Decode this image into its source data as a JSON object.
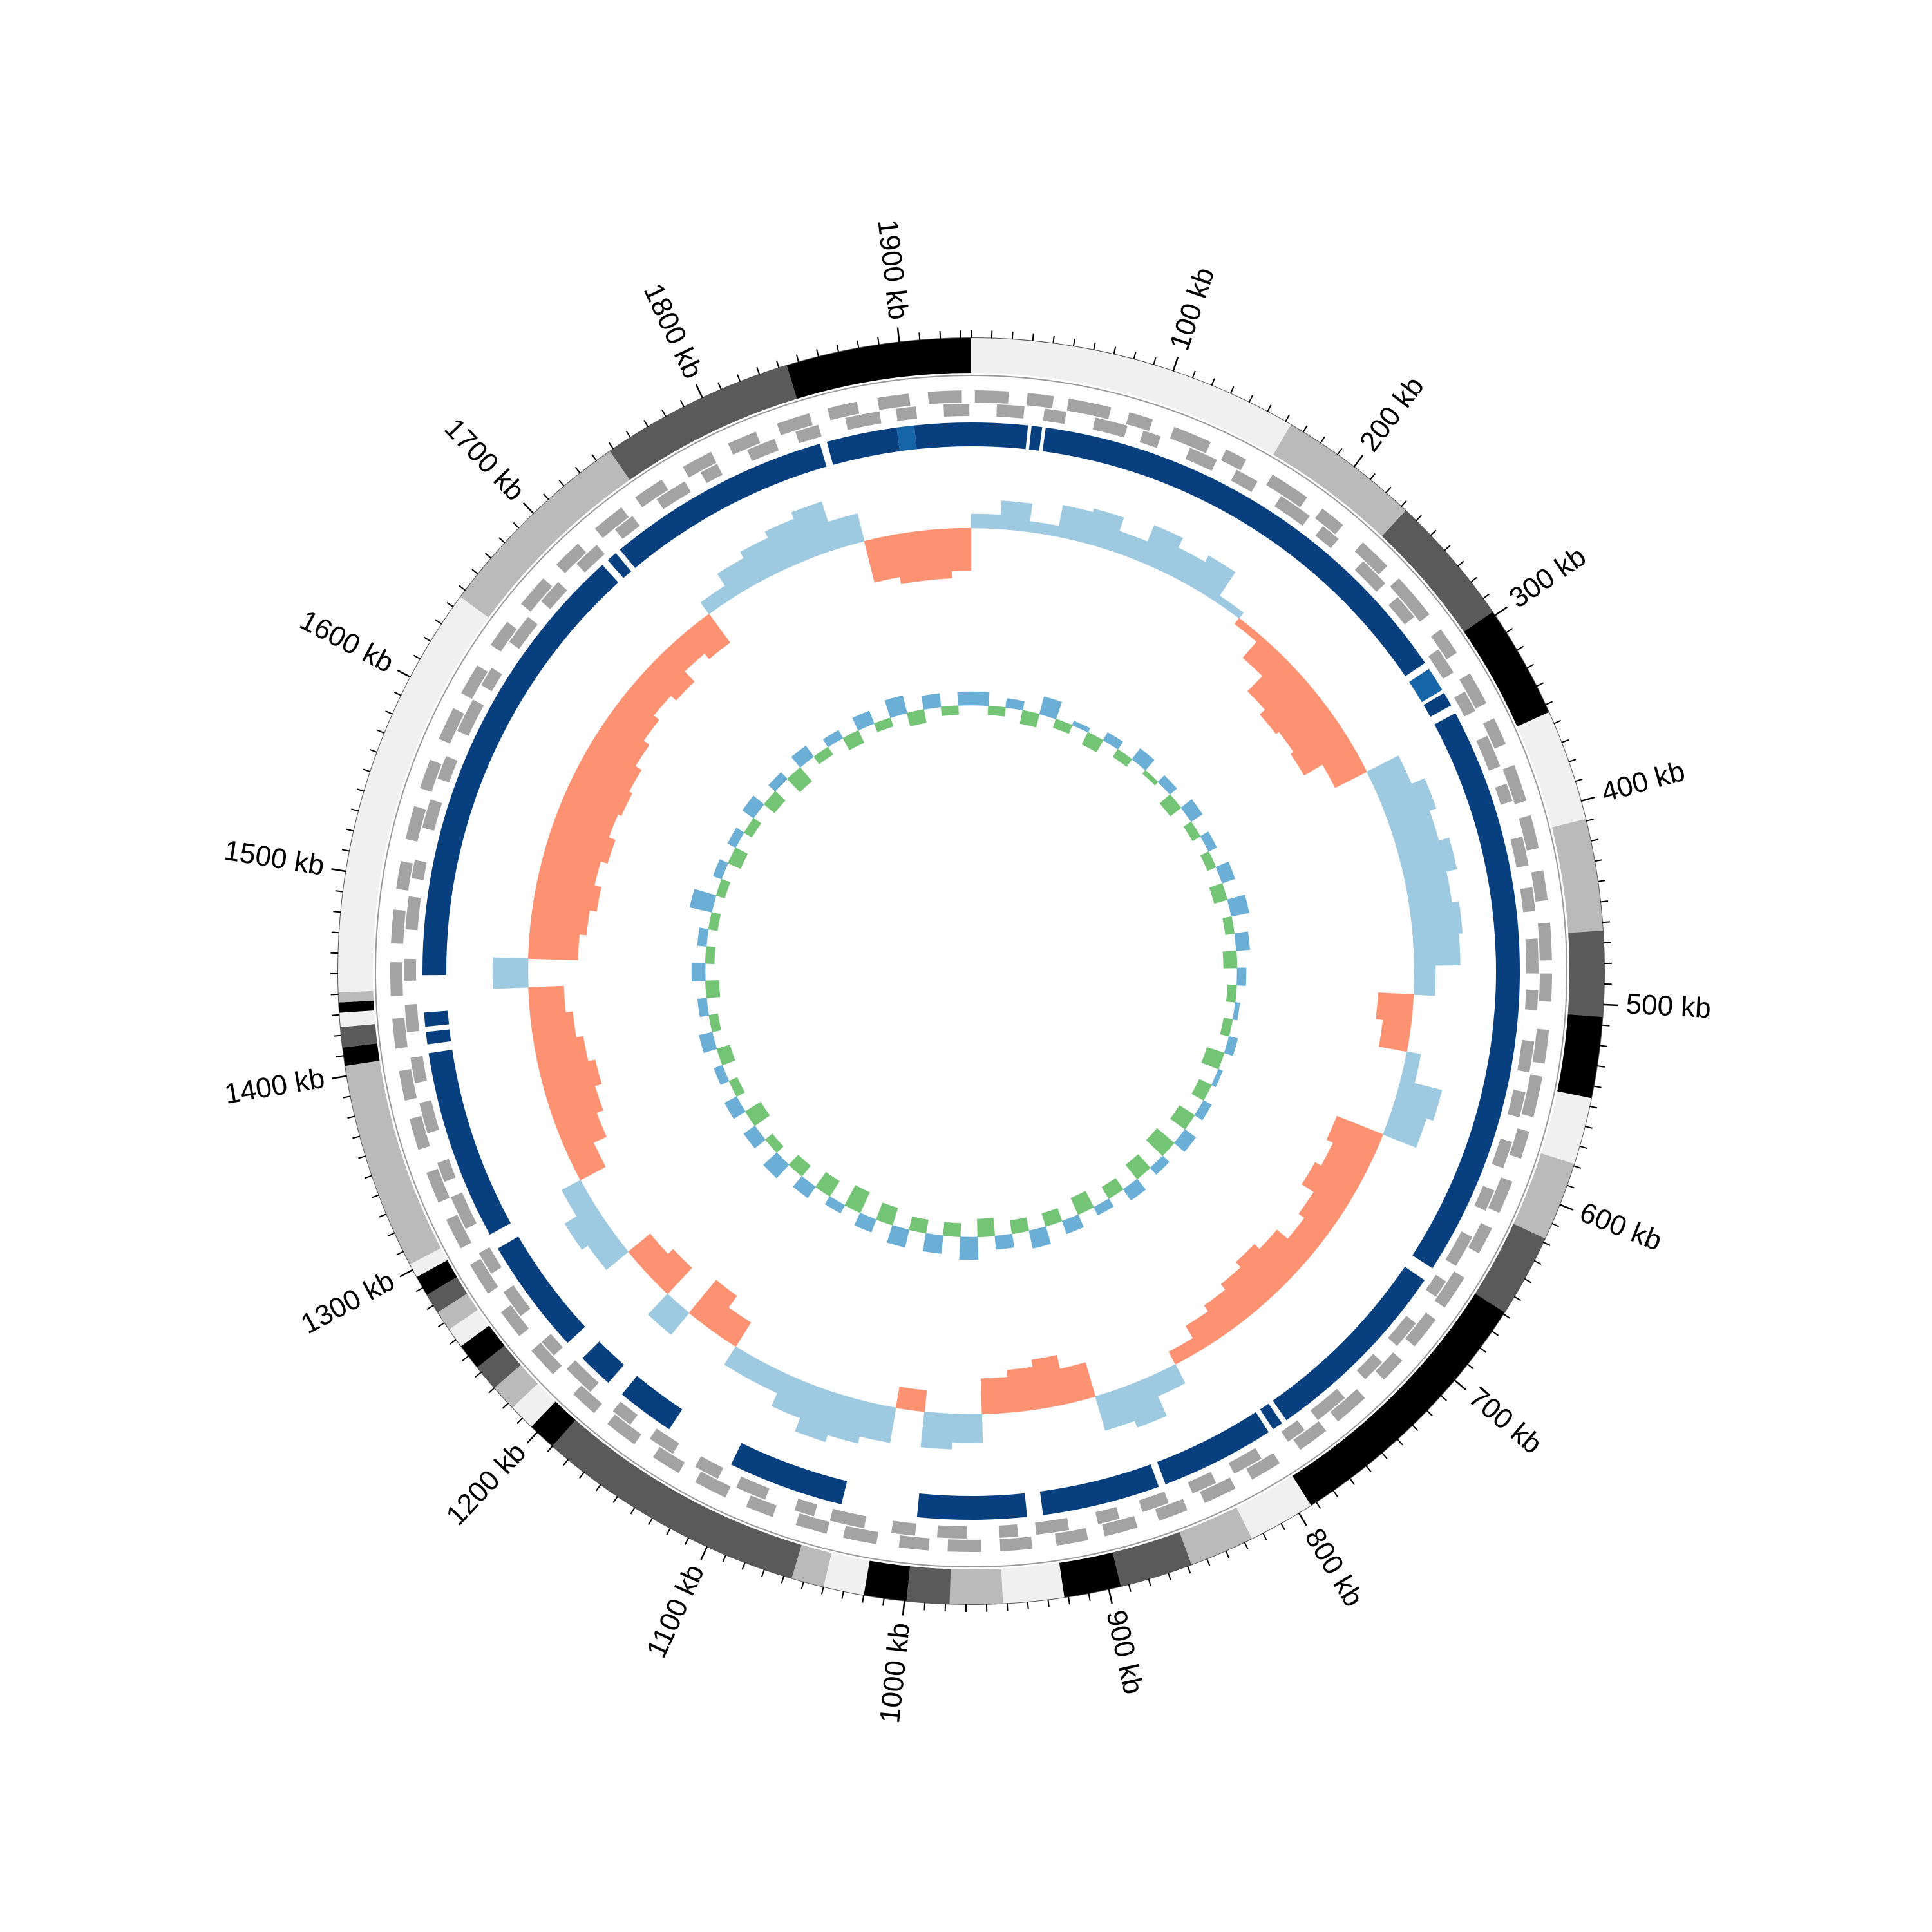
{
  "chart_data": {
    "type": "circular",
    "xlim": [
      0,
      1935
    ],
    "xticks": [
      {
        "value": 100,
        "label": "100 kb"
      },
      {
        "value": 200,
        "label": "200 kb"
      },
      {
        "value": 300,
        "label": "300 kb"
      },
      {
        "value": 400,
        "label": "400 kb"
      },
      {
        "value": 500,
        "label": "500 kb"
      },
      {
        "value": 600,
        "label": "600 kb"
      },
      {
        "value": 700,
        "label": "700 kb"
      },
      {
        "value": 800,
        "label": "800 kb"
      },
      {
        "value": 900,
        "label": "900 kb"
      },
      {
        "value": 1000,
        "label": "1000 kb"
      },
      {
        "value": 1100,
        "label": "1100 kb"
      },
      {
        "value": 1200,
        "label": "1200 kb"
      },
      {
        "value": 1300,
        "label": "1300 kb"
      },
      {
        "value": 1400,
        "label": "1400 kb"
      },
      {
        "value": 1500,
        "label": "1500 kb"
      },
      {
        "value": 1600,
        "label": "1600 kb"
      },
      {
        "value": 1700,
        "label": "1700 kb"
      },
      {
        "value": 1800,
        "label": "1800 kb"
      },
      {
        "value": 1900,
        "label": "1900 kb"
      }
    ],
    "minor_ticks": [
      0,
      10,
      20,
      30,
      40,
      50,
      60,
      70,
      80,
      90,
      100,
      110,
      120,
      130,
      140,
      150,
      160,
      170,
      180,
      190,
      200,
      210,
      220,
      230,
      240,
      250,
      260,
      270,
      280,
      290,
      300,
      310,
      320,
      330,
      340,
      350,
      360,
      370,
      380,
      390,
      400,
      410,
      420,
      430,
      440,
      450,
      460,
      470,
      480,
      490,
      500,
      510,
      520,
      530,
      540,
      550,
      560,
      570,
      580,
      590,
      600,
      610,
      620,
      630,
      640,
      650,
      660,
      670,
      680,
      690,
      700,
      710,
      720,
      730,
      740,
      750,
      760,
      770,
      780,
      790,
      800,
      810,
      820,
      830,
      840,
      850,
      860,
      870,
      880,
      890,
      900,
      910,
      920,
      930,
      940,
      950,
      960,
      970,
      980,
      990,
      1000,
      1010,
      1020,
      1030,
      1040,
      1050,
      1060,
      1070,
      1080,
      1090,
      1100,
      1110,
      1120,
      1130,
      1140,
      1150,
      1160,
      1170,
      1180,
      1190,
      1200,
      1210,
      1220,
      1230,
      1240,
      1250,
      1260,
      1270,
      1280,
      1290,
      1300,
      1310,
      1320,
      1330,
      1340,
      1350,
      1360,
      1370,
      1380,
      1390,
      1400,
      1410,
      1420,
      1430,
      1440,
      1450,
      1460,
      1470,
      1480,
      1490,
      1500,
      1510,
      1520,
      1530,
      1540,
      1550,
      1560,
      1570,
      1580,
      1590,
      1600,
      1610,
      1620,
      1630,
      1640,
      1650,
      1660,
      1670,
      1680,
      1690,
      1700,
      1710,
      1720,
      1730,
      1740,
      1750,
      1760,
      1770,
      1780,
      1790,
      1800,
      1810,
      1820,
      1830,
      1840,
      1850,
      1860,
      1870,
      1880,
      1890,
      1900,
      1910,
      1920,
      1930
    ],
    "bands": {
      "start": [
        0,
        163,
        233,
        298,
        354,
        409,
        464,
        506,
        546,
        579,
        618,
        659,
        793,
        826,
        858,
        894,
        922,
        952,
        978,
        999,
        1020,
        1040,
        1056,
        1190,
        1204,
        1217,
        1230,
        1243,
        1256,
        1266,
        1276,
        1286,
        1296,
        1303,
        1405,
        1414,
        1424,
        1431,
        1436,
        1441,
        1646,
        1748,
        1844
      ],
      "end": [
        163,
        233,
        298,
        354,
        409,
        464,
        506,
        546,
        579,
        618,
        659,
        793,
        826,
        858,
        894,
        922,
        952,
        978,
        999,
        1020,
        1040,
        1056,
        1190,
        1204,
        1217,
        1230,
        1243,
        1256,
        1266,
        1276,
        1286,
        1296,
        1303,
        1405,
        1414,
        1424,
        1431,
        1436,
        1441,
        1646,
        1748,
        1844,
        1935
      ],
      "colors": [
        "#f0f0f0",
        "#bababa",
        "#5a5a5a",
        "#000000",
        "#f0f0f0",
        "#bababa",
        "#5a5a5a",
        "#000000",
        "#f0f0f0",
        "#bababa",
        "#5a5a5a",
        "#000000",
        "#f0f0f0",
        "#bababa",
        "#5a5a5a",
        "#000000",
        "#f0f0f0",
        "#bababa",
        "#5a5a5a",
        "#000000",
        "#f0f0f0",
        "#bababa",
        "#5a5a5a",
        "#000000",
        "#f0f0f0",
        "#bababa",
        "#5a5a5a",
        "#000000",
        "#f0f0f0",
        "#bababa",
        "#5a5a5a",
        "#000000",
        "#f0f0f0",
        "#bababa",
        "#000000",
        "#5a5a5a",
        "#f0f0f0",
        "#000000",
        "#bababa",
        "#f0f0f0",
        "#bababa",
        "#5a5a5a",
        "#000000"
      ]
    },
    "genes": {
      "color": "#a3a3a3",
      "forward": {
        "start": [
          2,
          30,
          52,
          85,
          110,
          140,
          168,
          200,
          228,
          255,
          290,
          318,
          345,
          372,
          400,
          430,
          458,
          485,
          515,
          540,
          570,
          598,
          625,
          655,
          682,
          710,
          738,
          765,
          795,
          822,
          850,
          878,
          905,
          935,
          962,
          990,
          1018,
          1045,
          1075,
          1102,
          1130,
          1158,
          1185,
          1215,
          1242,
          1270,
          1298,
          1325,
          1355,
          1382,
          1410,
          1438,
          1466,
          1495,
          1522,
          1550,
          1578,
          1605,
          1635,
          1662,
          1690,
          1718,
          1745,
          1775,
          1802,
          1830,
          1858,
          1885,
          1912
        ],
        "end": [
          20,
          44,
          75,
          98,
          131,
          152,
          190,
          214,
          246,
          280,
          305,
          336,
          360,
          392,
          418,
          446,
          478,
          500,
          533,
          562,
          585,
          616,
          640,
          674,
          700,
          724,
          757,
          782,
          812,
          840,
          866,
          896,
          922,
          952,
          980,
          1006,
          1036,
          1062,
          1090,
          1120,
          1146,
          1176,
          1200,
          1232,
          1258,
          1288,
          1315,
          1342,
          1372,
          1398,
          1426,
          1456,
          1484,
          1510,
          1540,
          1566,
          1596,
          1622,
          1650,
          1680,
          1706,
          1736,
          1762,
          1792,
          1818,
          1848,
          1874,
          1902,
          1930
        ]
      },
      "reverse": {
        "start": [
          14,
          40,
          68,
          95,
          122,
          150,
          178,
          206,
          235,
          262,
          298,
          325,
          352,
          380,
          410,
          438,
          466,
          494,
          522,
          550,
          578,
          606,
          634,
          662,
          690,
          718,
          746,
          774,
          802,
          830,
          858,
          886,
          914,
          942,
          970,
          998,
          1026,
          1054,
          1082,
          1110,
          1138,
          1166,
          1194,
          1222,
          1250,
          1278,
          1306,
          1334,
          1362,
          1390,
          1418,
          1446,
          1474,
          1502,
          1530,
          1558,
          1586,
          1614,
          1642,
          1670,
          1698,
          1726,
          1754,
          1782,
          1810,
          1838,
          1866,
          1894,
          1920
        ],
        "end": [
          29,
          52,
          86,
          105,
          138,
          163,
          197,
          217,
          252,
          276,
          313,
          337,
          370,
          390,
          426,
          451,
          485,
          505,
          539,
          564,
          593,
          618,
          652,
          672,
          706,
          731,
          765,
          785,
          819,
          844,
          873,
          898,
          932,
          952,
          986,
          1011,
          1045,
          1065,
          1099,
          1124,
          1153,
          1178,
          1212,
          1232,
          1266,
          1291,
          1325,
          1345,
          1379,
          1404,
          1433,
          1458,
          1492,
          1512,
          1546,
          1571,
          1605,
          1625,
          1659,
          1684,
          1713,
          1738,
          1772,
          1792,
          1826,
          1851,
          1885,
          1905,
          1934
        ]
      }
    },
    "blocks": {
      "start": [
        0,
        34,
        42,
        304,
        320,
        333,
        668,
        782,
        791,
        860,
        936,
        1041,
        1147,
        1190,
        1222,
        1297,
        1410,
        1420,
        1449,
        1712,
        1721,
        1853,
        1893,
        1903
      ],
      "end": [
        32,
        40,
        300,
        318,
        328,
        660,
        779,
        788,
        856,
        927,
        998,
        1107,
        1180,
        1210,
        1288,
        1405,
        1417,
        1428,
        1708,
        1718,
        1849,
        1893,
        1903,
        1935
      ],
      "colors": [
        "#08407f",
        "#08407f",
        "#08407f",
        "#1565a8",
        "#08407f",
        "#08407f",
        "#08407f",
        "#08407f",
        "#08407f",
        "#08407f",
        "#08407f",
        "#08407f",
        "#08407f",
        "#08407f",
        "#08407f",
        "#08407f",
        "#08407f",
        "#08407f",
        "#08407f",
        "#08407f",
        "#08407f",
        "#08407f",
        "#1565a8",
        "#08407f"
      ]
    },
    "x": [
      0,
      20,
      40,
      60,
      80,
      100,
      120,
      140,
      160,
      180,
      200,
      220,
      240,
      260,
      280,
      300,
      320,
      340,
      360,
      380,
      400,
      420,
      440,
      460,
      480,
      500,
      520,
      540,
      560,
      580,
      600,
      620,
      640,
      660,
      680,
      700,
      720,
      740,
      760,
      780,
      800,
      820,
      840,
      860,
      880,
      900,
      920,
      940,
      960,
      980,
      1000,
      1020,
      1040,
      1060,
      1080,
      1100,
      1120,
      1140,
      1160,
      1180,
      1200,
      1220,
      1240,
      1260,
      1280,
      1300,
      1320,
      1340,
      1360,
      1380,
      1400,
      1420,
      1440,
      1460,
      1480,
      1500,
      1520,
      1540,
      1560,
      1580,
      1600,
      1620,
      1640,
      1660,
      1680,
      1700,
      1720,
      1740,
      1760,
      1780,
      1800,
      1820,
      1840,
      1860,
      1880,
      1900,
      1920
    ],
    "gc_skew": {
      "lim": [
        -0.1,
        0.1
      ],
      "positive_color": "#9ecae1",
      "negative_color": "#fc9272",
      "values": [
        0.02,
        0.04,
        0.015,
        0.045,
        0.05,
        0.03,
        0.055,
        0.04,
        0.05,
        0.01,
        -0.01,
        -0.04,
        -0.07,
        -0.08,
        -0.075,
        -0.08,
        -0.05,
        0.05,
        0.07,
        0.06,
        0.075,
        0.06,
        0.07,
        0.065,
        0.03,
        -0.05,
        -0.04,
        0.02,
        0.06,
        0.05,
        -0.07,
        -0.06,
        -0.07,
        -0.05,
        -0.04,
        -0.06,
        -0.07,
        -0.06,
        -0.05,
        -0.04,
        -0.02,
        0.03,
        0.06,
        0.05,
        -0.05,
        -0.07,
        -0.06,
        -0.05,
        0.04,
        0.05,
        -0.03,
        0.05,
        0.06,
        0.07,
        0.05,
        0.03,
        0.03,
        -0.04,
        -0.06,
        0.04,
        -0.05,
        -0.04,
        0.04,
        0.05,
        0.03,
        -0.04,
        -0.06,
        -0.07,
        -0.08,
        -0.07,
        -0.06,
        -0.05,
        0.05,
        -0.07,
        -0.08,
        -0.09,
        -0.08,
        -0.09,
        -0.08,
        -0.085,
        -0.08,
        -0.07,
        -0.06,
        -0.05,
        -0.06,
        -0.04,
        -0.05,
        0.02,
        0.04,
        0.05,
        0.06,
        0.07,
        0.04,
        -0.06,
        -0.07,
        -0.07,
        -0.06
      ]
    },
    "gc_content": {
      "lim": [
        -0.1,
        0.1
      ],
      "positive_color": "#6baed6",
      "negative_color": "#74c476",
      "values": [
        0.03,
        -0.02,
        0.02,
        -0.03,
        0.04,
        -0.02,
        0.01,
        -0.03,
        0.02,
        -0.02,
        0.03,
        -0.01,
        0.02,
        -0.03,
        0.03,
        -0.02,
        0.02,
        -0.02,
        0.03,
        -0.03,
        0.04,
        -0.02,
        0.03,
        -0.03,
        0.02,
        -0.02,
        0.01,
        -0.02,
        0.02,
        -0.04,
        0.01,
        -0.03,
        0.02,
        -0.04,
        0.03,
        -0.05,
        0.02,
        -0.04,
        0.03,
        -0.03,
        0.02,
        -0.04,
        0.03,
        -0.03,
        0.04,
        -0.03,
        0.03,
        -0.04,
        0.05,
        -0.03,
        0.04,
        -0.03,
        0.04,
        -0.04,
        0.03,
        -0.05,
        0.02,
        -0.04,
        0.03,
        -0.03,
        0.04,
        -0.02,
        0.03,
        -0.04,
        0.03,
        -0.02,
        0.02,
        -0.03,
        0.03,
        -0.02,
        0.02,
        -0.03,
        0.03,
        -0.02,
        0.02,
        -0.02,
        0.05,
        -0.02,
        0.02,
        -0.03,
        0.02,
        -0.02,
        0.03,
        -0.03,
        0.02,
        -0.04,
        0.03,
        -0.02,
        0.02,
        -0.03,
        0.03,
        -0.02,
        0.04,
        -0.03,
        0.03,
        -0.02,
        0.03
      ]
    }
  }
}
